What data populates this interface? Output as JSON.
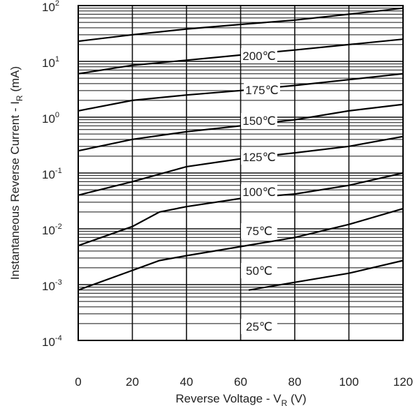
{
  "chart_data": {
    "type": "line",
    "x_axis": {
      "label": "Reverse Voltage - V",
      "label_sub": "R",
      "label_unit": " (V)",
      "range": [
        0,
        120
      ],
      "ticks": [
        "0",
        "20",
        "40",
        "60",
        "80",
        "100",
        "120"
      ]
    },
    "y_axis": {
      "label": "Instantaneous Reverse Current - I",
      "label_sub": "R",
      "label_unit": " (mA)",
      "scale": "log",
      "range": [
        0.0001,
        100
      ],
      "ticks": [
        {
          "base": "10",
          "exp": "-4"
        },
        {
          "base": "10",
          "exp": "-3"
        },
        {
          "base": "10",
          "exp": "-2"
        },
        {
          "base": "10",
          "exp": "-1"
        },
        {
          "base": "10",
          "exp": "0"
        },
        {
          "base": "10",
          "exp": "1"
        },
        {
          "base": "10",
          "exp": "2"
        }
      ]
    },
    "grid": true,
    "series": [
      {
        "name": "200℃",
        "x": [
          0,
          20,
          40,
          60,
          80,
          100,
          120
        ],
        "y": [
          23,
          30,
          38,
          46,
          55,
          70,
          90
        ]
      },
      {
        "name": "175℃",
        "x": [
          0,
          20,
          40,
          60,
          80,
          100,
          120
        ],
        "y": [
          6,
          8.5,
          10.5,
          13,
          16,
          20,
          25
        ]
      },
      {
        "name": "150℃",
        "x": [
          0,
          20,
          40,
          60,
          80,
          100,
          120
        ],
        "y": [
          1.3,
          2.0,
          2.5,
          3.0,
          3.7,
          4.7,
          6
        ]
      },
      {
        "name": "125℃",
        "x": [
          0,
          20,
          40,
          60,
          80,
          100,
          120
        ],
        "y": [
          0.25,
          0.4,
          0.55,
          0.7,
          0.9,
          1.3,
          1.7
        ]
      },
      {
        "name": "100℃",
        "x": [
          0,
          20,
          40,
          60,
          80,
          100,
          120
        ],
        "y": [
          0.04,
          0.07,
          0.13,
          0.18,
          0.23,
          0.3,
          0.45
        ]
      },
      {
        "name": "75℃",
        "x": [
          0,
          20,
          30,
          40,
          60,
          80,
          100,
          120
        ],
        "y": [
          0.005,
          0.011,
          0.02,
          0.025,
          0.035,
          0.042,
          0.06,
          0.1
        ]
      },
      {
        "name": "50℃",
        "x": [
          0,
          20,
          30,
          40,
          60,
          80,
          100,
          120
        ],
        "y": [
          0.0008,
          0.0018,
          0.0027,
          0.0033,
          0.0048,
          0.007,
          0.012,
          0.023
        ]
      },
      {
        "name": "25℃",
        "x": [
          63,
          80,
          100,
          120
        ],
        "y": [
          0.0008,
          0.0011,
          0.0016,
          0.0027
        ]
      }
    ]
  }
}
